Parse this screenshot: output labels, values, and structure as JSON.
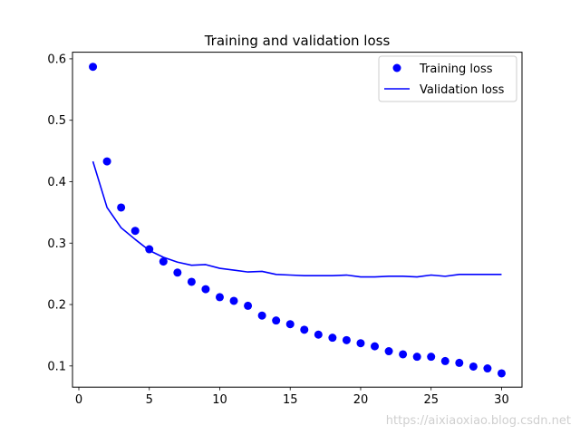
{
  "chart_data": {
    "type": "line",
    "title": "Training and validation loss",
    "xlabel": "",
    "ylabel": "",
    "xlim": [
      -0.45,
      31.45
    ],
    "ylim": [
      0.0655,
      0.6108
    ],
    "xticks": [
      0,
      5,
      10,
      15,
      20,
      25,
      30
    ],
    "yticks": [
      0.1,
      0.2,
      0.3,
      0.4,
      0.5,
      0.6
    ],
    "grid": false,
    "legend_position": "top-right",
    "series": [
      {
        "name": "Training loss",
        "style": "points",
        "color": "#0000ff",
        "x": [
          1,
          2,
          3,
          4,
          5,
          6,
          7,
          8,
          9,
          10,
          11,
          12,
          13,
          14,
          15,
          16,
          17,
          18,
          19,
          20,
          21,
          22,
          23,
          24,
          25,
          26,
          27,
          28,
          29,
          30
        ],
        "values": [
          0.587,
          0.433,
          0.358,
          0.32,
          0.29,
          0.27,
          0.252,
          0.237,
          0.225,
          0.212,
          0.206,
          0.198,
          0.182,
          0.174,
          0.168,
          0.159,
          0.151,
          0.146,
          0.142,
          0.137,
          0.132,
          0.124,
          0.119,
          0.115,
          0.115,
          0.108,
          0.105,
          0.099,
          0.096,
          0.088
        ]
      },
      {
        "name": "Validation loss",
        "style": "line",
        "color": "#0000ff",
        "x": [
          1,
          2,
          3,
          4,
          5,
          6,
          7,
          8,
          9,
          10,
          11,
          12,
          13,
          14,
          15,
          16,
          17,
          18,
          19,
          20,
          21,
          22,
          23,
          24,
          25,
          26,
          27,
          28,
          29,
          30
        ],
        "values": [
          0.433,
          0.358,
          0.325,
          0.306,
          0.288,
          0.277,
          0.269,
          0.264,
          0.265,
          0.259,
          0.256,
          0.253,
          0.254,
          0.249,
          0.248,
          0.247,
          0.247,
          0.247,
          0.248,
          0.245,
          0.245,
          0.246,
          0.246,
          0.245,
          0.248,
          0.246,
          0.249,
          0.249,
          0.249,
          0.249
        ]
      }
    ]
  },
  "watermark": "https://aixiaoxiao.blog.csdn.net"
}
